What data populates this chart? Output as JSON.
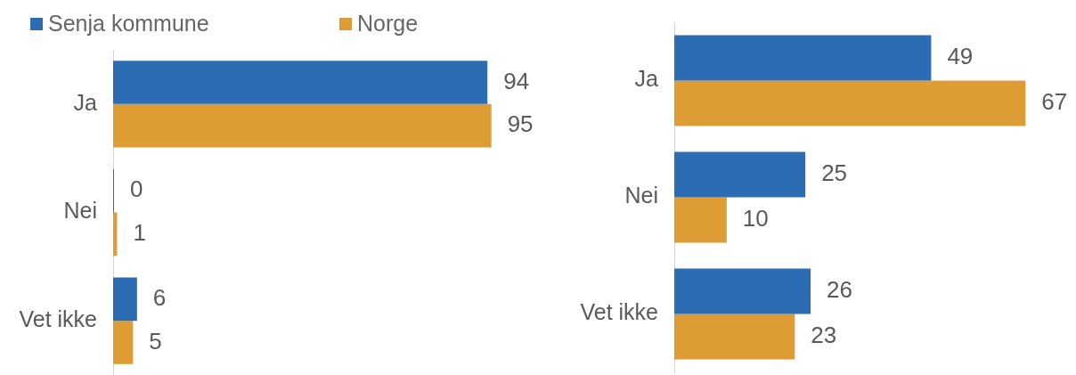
{
  "chart_data": [
    {
      "type": "bar",
      "orientation": "horizontal",
      "categories": [
        "Ja",
        "Nei",
        "Vet ikke"
      ],
      "series": [
        {
          "name": "Senja kommune",
          "color": "#2b6cb3",
          "values": [
            94,
            0,
            6
          ]
        },
        {
          "name": "Norge",
          "color": "#de9c35",
          "values": [
            95,
            1,
            5
          ]
        }
      ],
      "data_labels": true,
      "tick_labels": "y",
      "legend": "top left"
    },
    {
      "type": "bar",
      "orientation": "horizontal",
      "categories": [
        "Ja",
        "Nei",
        "Vet ikke"
      ],
      "series": [
        {
          "color": "#2b6cb3",
          "values": [
            49,
            25,
            26
          ]
        },
        {
          "color": "#de9c35",
          "values": [
            67,
            10,
            23
          ]
        }
      ],
      "data_labels": true,
      "tick_labels": "y"
    }
  ]
}
